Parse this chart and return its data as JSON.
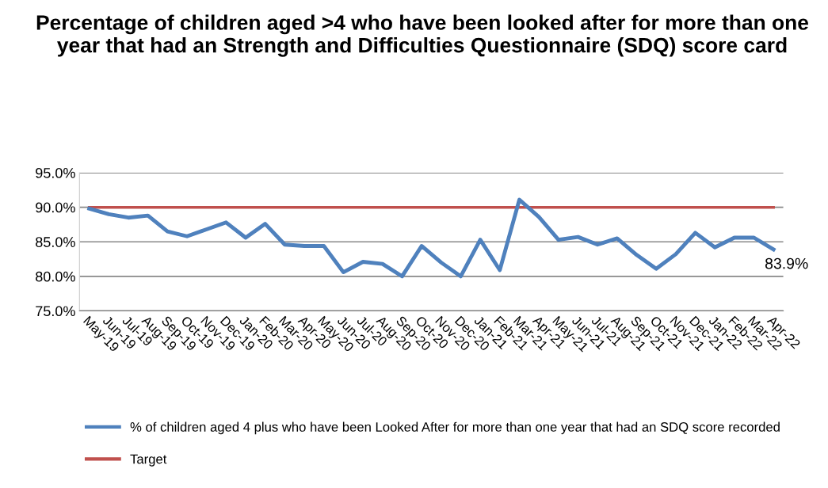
{
  "chart_data": {
    "type": "line",
    "title": "Percentage of children aged >4 who have been looked after for more than one year that had an Strength and Difficulties Questionnaire (SDQ) score card",
    "categories": [
      "May-19",
      "Jun-19",
      "Jul-19",
      "Aug-19",
      "Sep-19",
      "Oct-19",
      "Nov-19",
      "Dec-19",
      "Jan-20",
      "Feb-20",
      "Mar-20",
      "Apr-20",
      "May-20",
      "Jun-20",
      "Jul-20",
      "Aug-20",
      "Sep-20",
      "Oct-20",
      "Nov-20",
      "Dec-20",
      "Jan-21",
      "Feb-21",
      "Mar-21",
      "Apr-21",
      "May-21",
      "Jun-21",
      "Jul-21",
      "Aug-21",
      "Sep-21",
      "Oct-21",
      "Nov-21",
      "Dec-21",
      "Jan-22",
      "Feb-22",
      "Mar-22",
      "Apr-22"
    ],
    "series": [
      {
        "name": "% of children aged 4 plus who have been Looked After for more than one year that had an SDQ score recorded",
        "color": "#4f81bd",
        "values": [
          89.8,
          89.0,
          88.5,
          88.8,
          86.5,
          85.8,
          86.8,
          87.8,
          85.6,
          87.6,
          84.6,
          84.4,
          84.4,
          80.6,
          82.1,
          81.8,
          80.0,
          84.4,
          82.0,
          80.0,
          85.3,
          80.9,
          91.1,
          88.6,
          85.3,
          85.7,
          84.6,
          85.5,
          83.1,
          81.1,
          83.2,
          86.3,
          84.2,
          85.6,
          85.6,
          83.9
        ],
        "value_labels": [
          null,
          null,
          null,
          null,
          null,
          null,
          null,
          null,
          null,
          null,
          null,
          null,
          null,
          null,
          null,
          null,
          null,
          null,
          null,
          null,
          null,
          null,
          null,
          null,
          null,
          null,
          null,
          null,
          null,
          null,
          null,
          null,
          null,
          null,
          null,
          "83.9%"
        ]
      },
      {
        "name": "Target",
        "color": "#c0504d",
        "values": [
          90,
          90,
          90,
          90,
          90,
          90,
          90,
          90,
          90,
          90,
          90,
          90,
          90,
          90,
          90,
          90,
          90,
          90,
          90,
          90,
          90,
          90,
          90,
          90,
          90,
          90,
          90,
          90,
          90,
          90,
          90,
          90,
          90,
          90,
          90,
          90
        ]
      }
    ],
    "ylim": [
      75,
      95
    ],
    "yticks": [
      {
        "value": 75,
        "label": "75.0%"
      },
      {
        "value": 80,
        "label": "80.0%"
      },
      {
        "value": 85,
        "label": "85.0%"
      },
      {
        "value": 90,
        "label": "90.0%"
      },
      {
        "value": 95,
        "label": "95.0%"
      }
    ],
    "grid": "y",
    "legend": "bottom",
    "marker": "none",
    "line_style": "solid"
  }
}
